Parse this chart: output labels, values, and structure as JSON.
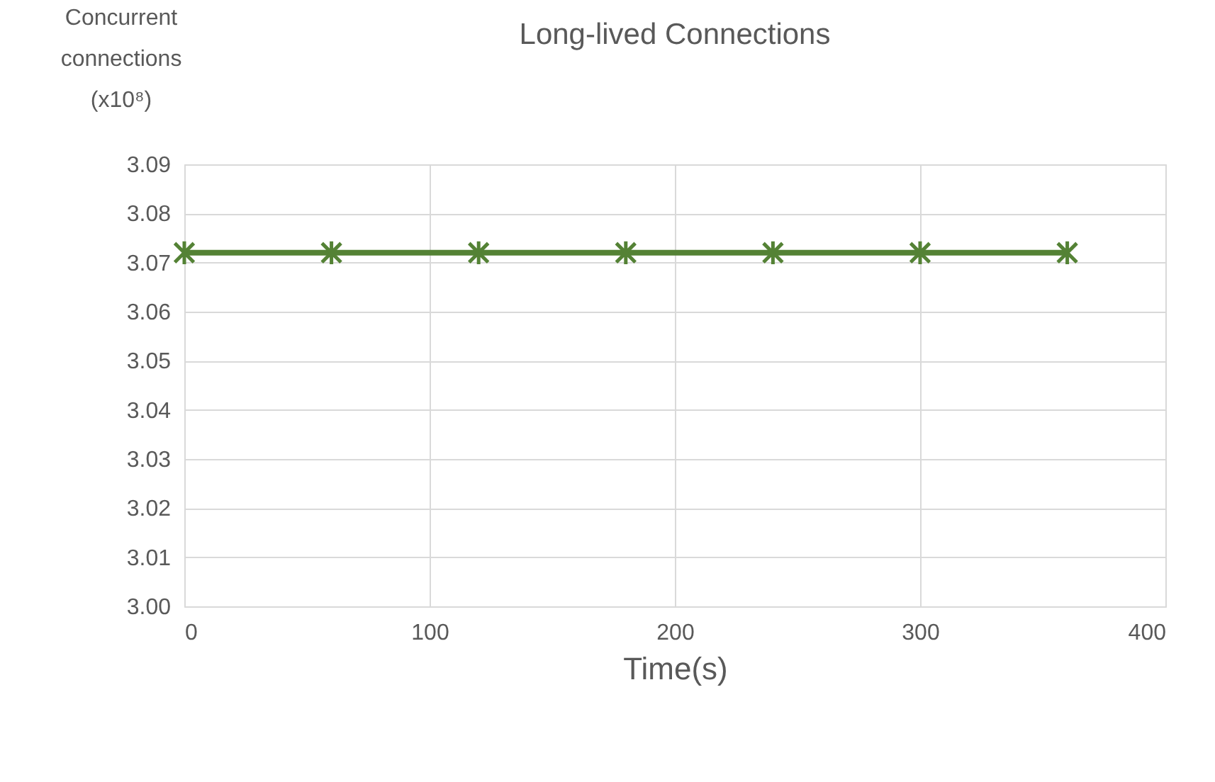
{
  "chart_data": {
    "type": "line",
    "title": "Long-lived Connections",
    "xlabel": "Time(s)",
    "ylabel": "Concurrent connections (x10⁸)",
    "x": [
      0,
      60,
      120,
      180,
      240,
      300,
      360
    ],
    "series": [
      {
        "color": "#548235",
        "values": [
          3.072,
          3.072,
          3.072,
          3.072,
          3.072,
          3.072,
          3.072
        ]
      }
    ],
    "xlim": [
      0,
      400
    ],
    "xticks": [
      0,
      100,
      200,
      300,
      400
    ],
    "ylim": [
      3.0,
      3.09
    ],
    "yticks": [
      {
        "value": 3.0,
        "label": "3.00"
      },
      {
        "value": 3.01,
        "label": "3.01"
      },
      {
        "value": 3.02,
        "label": "3.02"
      },
      {
        "value": 3.03,
        "label": "3.03"
      },
      {
        "value": 3.04,
        "label": "3.04"
      },
      {
        "value": 3.05,
        "label": "3.05"
      },
      {
        "value": 3.06,
        "label": "3.06"
      },
      {
        "value": 3.07,
        "label": "3.07"
      },
      {
        "value": 3.08,
        "label": "3.08"
      },
      {
        "value": 3.09,
        "label": "3.09"
      }
    ],
    "grid": true,
    "marker": "cross",
    "line_style": "solid"
  }
}
